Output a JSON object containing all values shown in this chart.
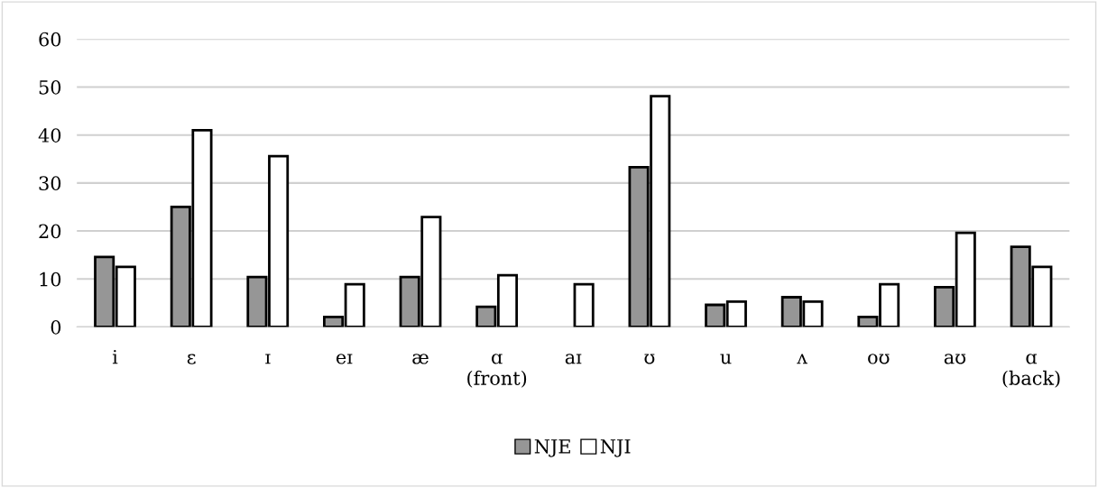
{
  "chart_data": {
    "type": "bar",
    "categories": [
      "i",
      "ɛ",
      "ɪ",
      "eɪ",
      "æ",
      "ɑ\n(front)",
      "aɪ",
      "ʊ",
      "u",
      "ʌ",
      "oʊ",
      "aʊ",
      "ɑ\n(back)"
    ],
    "series": [
      {
        "name": "NJE",
        "color": "#969696",
        "values": [
          14.6,
          25,
          10.4,
          2.1,
          10.4,
          4.2,
          null,
          33.3,
          4.6,
          6.2,
          2.1,
          8.3,
          16.7
        ]
      },
      {
        "name": "NJI",
        "color": "#ffffff",
        "values": [
          12.5,
          41,
          35.6,
          8.9,
          22.9,
          10.8,
          8.9,
          48.1,
          5.3,
          5.3,
          8.9,
          19.6,
          12.5
        ]
      }
    ],
    "ylim": [
      0,
      60
    ],
    "yticks": [
      0,
      10,
      20,
      30,
      40,
      50,
      60
    ],
    "grid": "y",
    "legend": "bottom"
  }
}
